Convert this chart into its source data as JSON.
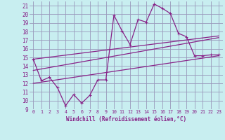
{
  "xlabel": "Windchill (Refroidissement éolien,°C)",
  "background_color": "#c8eef0",
  "grid_color": "#9999bb",
  "line_color": "#882288",
  "xlim": [
    -0.5,
    23.5
  ],
  "ylim": [
    9,
    21.5
  ],
  "xticks": [
    0,
    1,
    2,
    3,
    4,
    5,
    6,
    7,
    8,
    9,
    10,
    11,
    12,
    13,
    14,
    15,
    16,
    17,
    18,
    19,
    20,
    21,
    22,
    23
  ],
  "yticks": [
    9,
    10,
    11,
    12,
    13,
    14,
    15,
    16,
    17,
    18,
    19,
    20,
    21
  ],
  "series1_x": [
    0,
    1,
    2,
    3,
    4,
    5,
    6,
    7,
    8,
    9,
    10,
    11,
    12,
    13,
    14,
    15,
    16,
    17,
    18,
    19,
    20,
    21,
    22,
    23
  ],
  "series1_y": [
    14.8,
    12.3,
    12.7,
    11.5,
    9.4,
    10.7,
    9.7,
    10.6,
    12.4,
    12.4,
    19.9,
    18.1,
    16.5,
    19.4,
    19.1,
    21.2,
    20.7,
    20.1,
    17.8,
    17.4,
    15.2,
    15.2,
    15.3,
    15.3
  ],
  "series2_x": [
    0,
    23
  ],
  "series2_y": [
    13.5,
    17.3
  ],
  "series3_x": [
    0,
    23
  ],
  "series3_y": [
    14.8,
    17.5
  ],
  "series4_x": [
    0,
    23
  ],
  "series4_y": [
    12.0,
    15.2
  ]
}
